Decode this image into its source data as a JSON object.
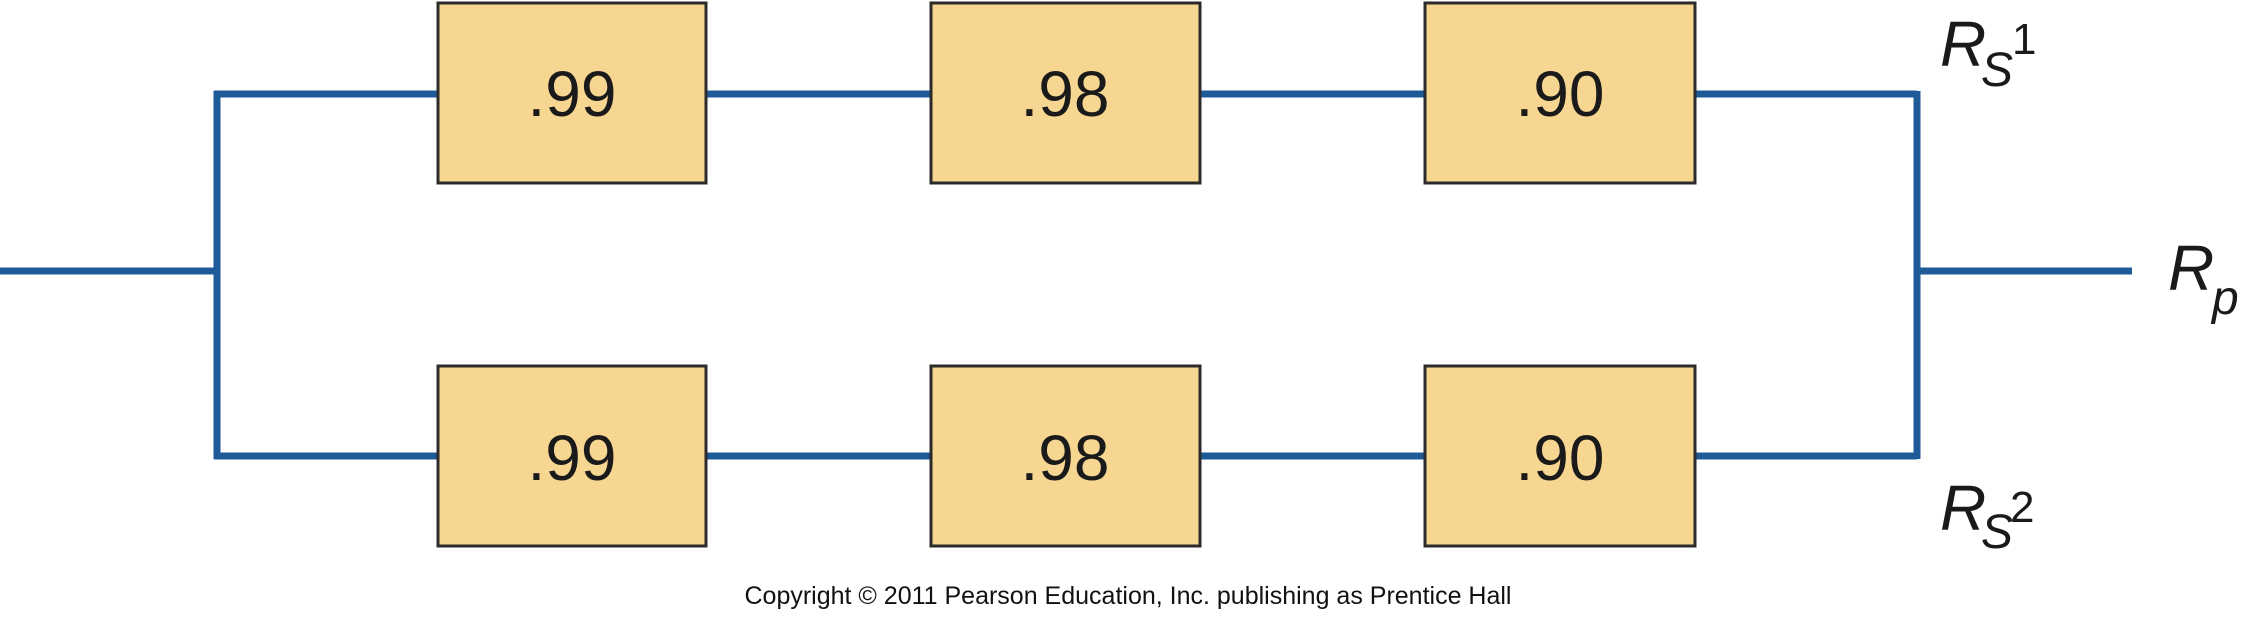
{
  "colors": {
    "line": "#1f5a99",
    "box_fill": "#f7d691",
    "box_border": "#2b2b2b"
  },
  "branches": [
    {
      "label_main": "R",
      "label_sub": "S",
      "label_sup": "1",
      "components": [
        ".99",
        ".98",
        ".90"
      ]
    },
    {
      "label_main": "R",
      "label_sub": "S",
      "label_sup": "2",
      "components": [
        ".99",
        ".98",
        ".90"
      ]
    }
  ],
  "output_label": {
    "main": "R",
    "sub": "p"
  },
  "copyright": "Copyright © 2011 Pearson Education, Inc. publishing as Prentice Hall"
}
